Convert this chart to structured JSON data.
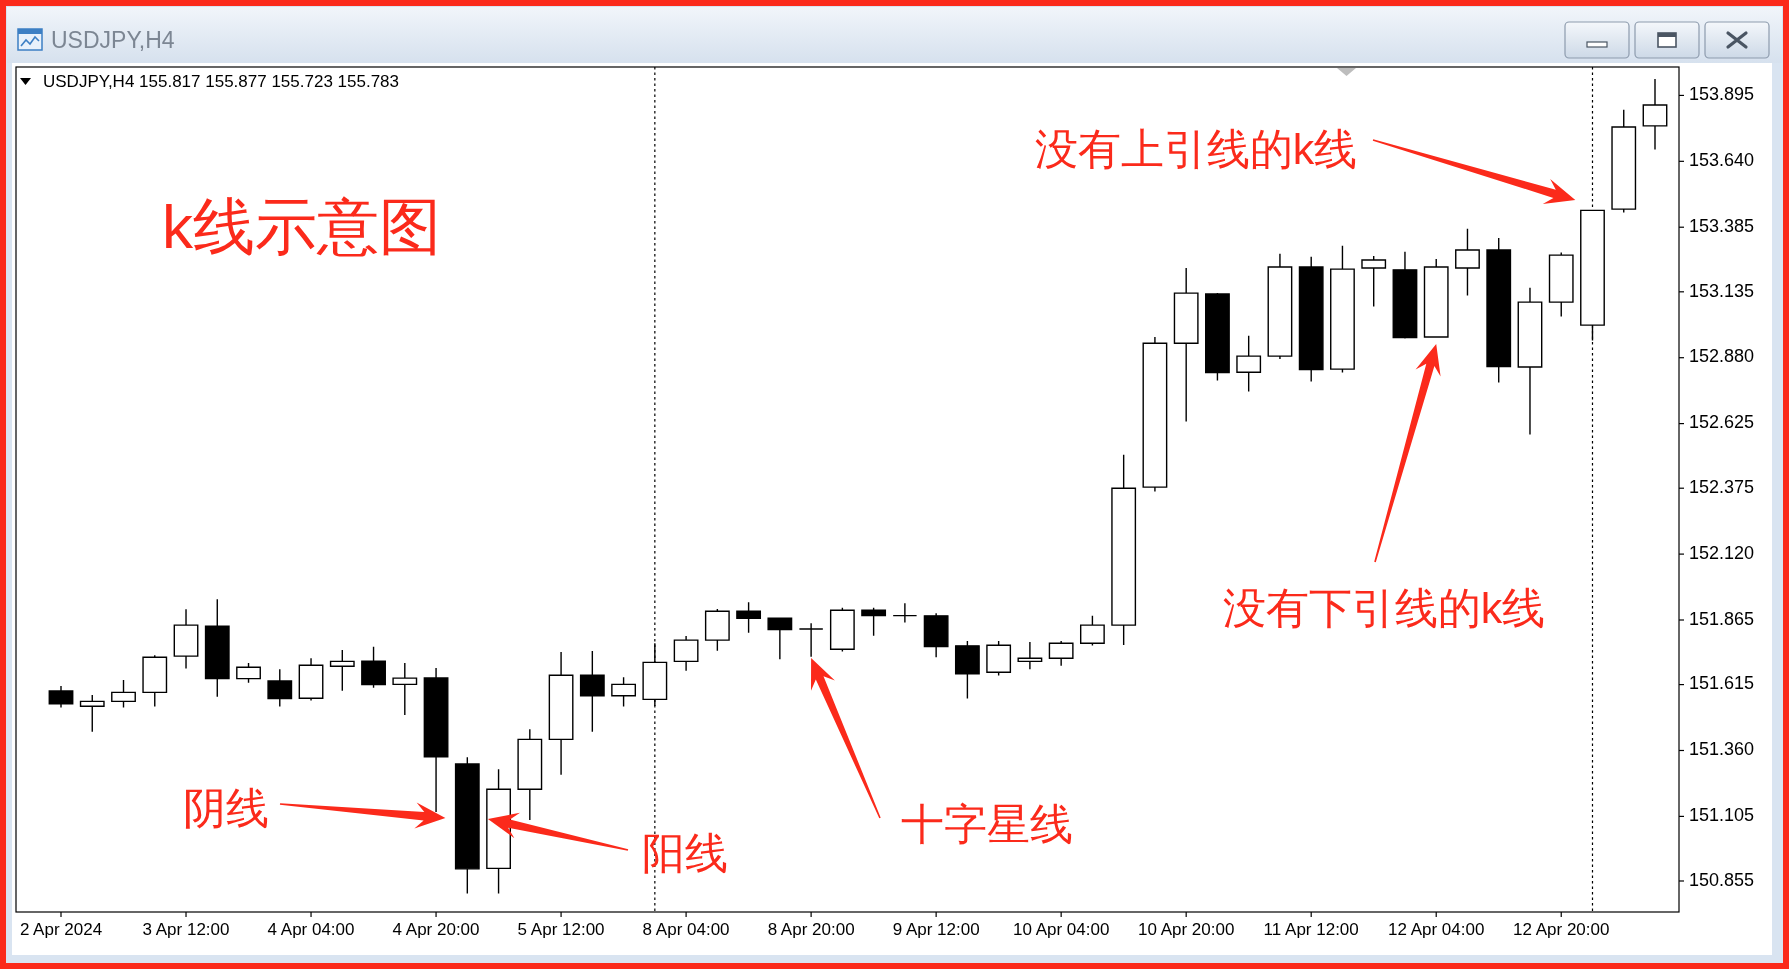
{
  "chart_data": {
    "type": "candlestick",
    "title": "USDJPY,H4",
    "subtitle": "USDJPY,H4 155.817 155.877 155.723 155.783",
    "categories": [
      "2 Apr 2024",
      null,
      null,
      null,
      "3 Apr 12:00",
      null,
      null,
      null,
      "4 Apr 04:00",
      null,
      null,
      null,
      "4 Apr 20:00",
      null,
      null,
      null,
      "5 Apr 12:00",
      null,
      null,
      null,
      "8 Apr 04:00",
      null,
      null,
      null,
      "8 Apr 20:00",
      null,
      null,
      null,
      "9 Apr 12:00",
      null,
      null,
      null,
      "10 Apr 04:00",
      null,
      null,
      null,
      "10 Apr 20:00",
      null,
      null,
      null,
      "11 Apr 12:00",
      null,
      null,
      null,
      "12 Apr 04:00",
      null,
      null,
      null,
      "12 Apr 20:00",
      null,
      null,
      null
    ],
    "ohlc": [
      [
        151.59,
        151.61,
        151.526,
        151.541
      ],
      [
        151.531,
        151.575,
        151.433,
        151.55
      ],
      [
        151.55,
        151.633,
        151.526,
        151.585
      ],
      [
        151.585,
        151.729,
        151.53,
        151.721
      ],
      [
        151.725,
        151.907,
        151.677,
        151.845
      ],
      [
        151.841,
        151.945,
        151.568,
        151.638
      ],
      [
        151.638,
        151.699,
        151.622,
        151.682
      ],
      [
        151.629,
        151.674,
        151.53,
        151.561
      ],
      [
        151.562,
        151.717,
        151.553,
        151.69
      ],
      [
        151.686,
        151.749,
        151.591,
        151.705
      ],
      [
        151.706,
        151.761,
        151.603,
        151.615
      ],
      [
        151.616,
        151.699,
        151.497,
        151.64
      ],
      [
        151.641,
        151.679,
        151.122,
        151.336
      ],
      [
        151.308,
        151.334,
        150.807,
        150.902
      ],
      [
        150.904,
        151.287,
        150.807,
        151.21
      ],
      [
        151.21,
        151.442,
        151.091,
        151.403
      ],
      [
        151.403,
        151.741,
        151.266,
        151.651
      ],
      [
        151.651,
        151.745,
        151.433,
        151.572
      ],
      [
        151.572,
        151.643,
        151.53,
        151.616
      ],
      [
        151.558,
        151.775,
        151.532,
        151.701
      ],
      [
        151.705,
        151.803,
        151.669,
        151.787
      ],
      [
        151.787,
        151.908,
        151.746,
        151.899
      ],
      [
        151.899,
        151.934,
        151.816,
        151.872
      ],
      [
        151.872,
        151.873,
        151.713,
        151.828
      ],
      [
        151.83,
        151.852,
        151.723,
        151.83
      ],
      [
        151.752,
        151.912,
        151.743,
        151.903
      ],
      [
        151.903,
        151.912,
        151.804,
        151.882
      ],
      [
        151.882,
        151.93,
        151.855,
        151.882
      ],
      [
        151.881,
        151.891,
        151.721,
        151.762
      ],
      [
        151.765,
        151.784,
        151.561,
        151.657
      ],
      [
        151.663,
        151.784,
        151.65,
        151.767
      ],
      [
        151.705,
        151.78,
        151.674,
        151.717
      ],
      [
        151.717,
        151.784,
        151.688,
        151.775
      ],
      [
        151.775,
        151.881,
        151.766,
        151.845
      ],
      [
        151.845,
        152.504,
        151.768,
        152.375
      ],
      [
        152.379,
        152.96,
        152.362,
        152.936
      ],
      [
        152.936,
        153.227,
        152.633,
        153.13
      ],
      [
        153.127,
        153.13,
        152.792,
        152.823
      ],
      [
        152.824,
        152.965,
        152.749,
        152.886
      ],
      [
        152.886,
        153.282,
        152.875,
        153.231
      ],
      [
        153.231,
        153.271,
        152.788,
        152.834
      ],
      [
        152.836,
        153.313,
        152.823,
        153.223
      ],
      [
        153.227,
        153.274,
        153.078,
        153.258
      ],
      [
        153.22,
        153.29,
        152.954,
        152.958
      ],
      [
        152.96,
        153.262,
        152.96,
        153.231
      ],
      [
        153.227,
        153.379,
        153.121,
        153.297
      ],
      [
        153.297,
        153.343,
        152.784,
        152.846
      ],
      [
        152.844,
        153.151,
        152.583,
        153.095
      ],
      [
        153.095,
        153.287,
        153.039,
        153.277
      ],
      [
        153.006,
        153.45,
        152.947,
        153.45
      ],
      [
        153.455,
        153.84,
        153.442,
        153.773
      ],
      [
        153.777,
        153.959,
        153.686,
        153.858
      ]
    ],
    "ylim": [
      150.735,
      154.005
    ],
    "yticks": [
      153.895,
      {
        "value": 153.64,
        "label": "153.640"
      },
      153.385,
      153.135,
      {
        "value": 152.88,
        "label": "152.880"
      },
      152.625,
      152.375,
      {
        "value": 152.12,
        "label": "152.120"
      },
      151.865,
      151.615,
      {
        "value": 151.36,
        "label": "151.360"
      },
      151.105,
      150.855
    ],
    "annotations": [
      "k线示意图",
      "阴线",
      "阳线",
      "十字星线",
      "没有下引线的k线",
      "没有上引线的k线"
    ]
  }
}
